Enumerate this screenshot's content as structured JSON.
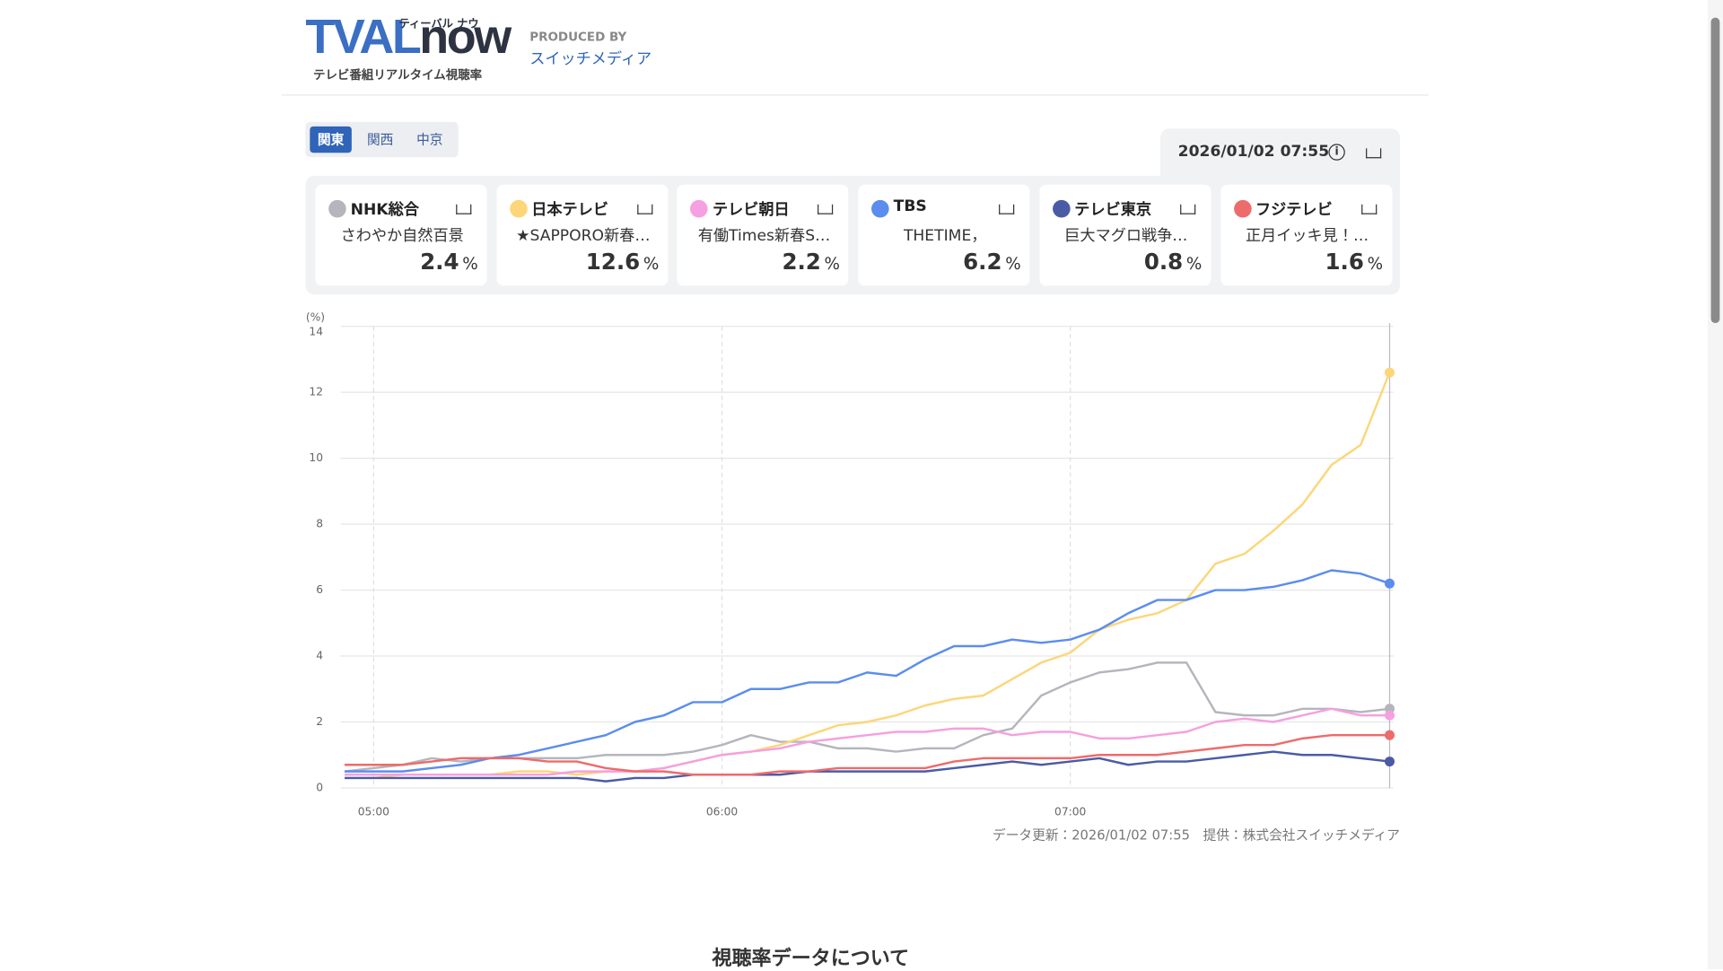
{
  "header": {
    "logo": "TVAL",
    "logo_now": "now",
    "logo_kana": "ティーバル ナウ",
    "logo_sub": "テレビ番組リアルタイム視聴率",
    "produced_by": "PRODUCED BY",
    "producer": "スイッチメディア"
  },
  "tabs": [
    "関東",
    "関西",
    "中京"
  ],
  "timestamp": "2026/01/02 07:55",
  "unit": "%",
  "channels": [
    {
      "program": "さわやか自然百景",
      "rating": 2.4
    },
    {
      "program": "★SAPPORO新春…",
      "rating": 12.6
    },
    {
      "program": "有働Times新春S…",
      "rating": 2.2
    },
    {
      "program": "THETIME，",
      "rating": 6.2
    },
    {
      "program": "巨大マグロ戦争…",
      "rating": 0.8
    },
    {
      "program": "正月イッキ見！…",
      "rating": 1.6
    }
  ],
  "chart_data": {
    "type": "line",
    "y_label": "(%)",
    "categories": [
      null,
      "05:00",
      null,
      null,
      null,
      null,
      null,
      null,
      null,
      null,
      null,
      null,
      null,
      "06:00",
      null,
      null,
      null,
      null,
      null,
      null,
      null,
      null,
      null,
      null,
      null,
      "07:00",
      null,
      null,
      null,
      null,
      null,
      null,
      null,
      null,
      null,
      null,
      null
    ],
    "ylim": [
      0,
      14
    ],
    "yticks": [
      0,
      2,
      4,
      6,
      8,
      10,
      12,
      14
    ],
    "grid": true,
    "series": [
      {
        "name": "NHK総合",
        "color": "#b4b6bc",
        "values": [
          0.5,
          0.6,
          0.7,
          0.9,
          0.8,
          0.9,
          0.9,
          0.9,
          0.9,
          1.0,
          1.0,
          1.0,
          1.1,
          1.3,
          1.6,
          1.4,
          1.4,
          1.2,
          1.2,
          1.1,
          1.2,
          1.2,
          1.6,
          1.8,
          2.8,
          3.2,
          3.5,
          3.6,
          3.8,
          3.8,
          2.3,
          2.2,
          2.2,
          2.4,
          2.4,
          2.3,
          2.4
        ]
      },
      {
        "name": "日本テレビ",
        "color": "#fcd679",
        "values": [
          0.3,
          0.3,
          0.4,
          0.4,
          0.4,
          0.4,
          0.5,
          0.5,
          0.4,
          0.5,
          0.5,
          0.6,
          0.8,
          1.0,
          1.1,
          1.3,
          1.6,
          1.9,
          2.0,
          2.2,
          2.5,
          2.7,
          2.8,
          3.3,
          3.8,
          4.1,
          4.8,
          5.1,
          5.3,
          5.7,
          6.8,
          7.1,
          7.8,
          8.6,
          9.8,
          10.4,
          12.6
        ]
      },
      {
        "name": "テレビ朝日",
        "color": "#f5a0e0",
        "values": [
          0.4,
          0.4,
          0.4,
          0.4,
          0.4,
          0.4,
          0.4,
          0.4,
          0.5,
          0.5,
          0.5,
          0.6,
          0.8,
          1.0,
          1.1,
          1.2,
          1.4,
          1.5,
          1.6,
          1.7,
          1.7,
          1.8,
          1.8,
          1.6,
          1.7,
          1.7,
          1.5,
          1.5,
          1.6,
          1.7,
          2.0,
          2.1,
          2.0,
          2.2,
          2.4,
          2.2,
          2.2
        ]
      },
      {
        "name": "TBS",
        "color": "#5b8def",
        "values": [
          0.5,
          0.5,
          0.5,
          0.6,
          0.7,
          0.9,
          1.0,
          1.2,
          1.4,
          1.6,
          2.0,
          2.2,
          2.6,
          2.6,
          3.0,
          3.0,
          3.2,
          3.2,
          3.5,
          3.4,
          3.9,
          4.3,
          4.3,
          4.5,
          4.4,
          4.5,
          4.8,
          5.3,
          5.7,
          5.7,
          6.0,
          6.0,
          6.1,
          6.3,
          6.6,
          6.5,
          6.2
        ]
      },
      {
        "name": "テレビ東京",
        "color": "#4a5ba6",
        "values": [
          0.3,
          0.3,
          0.3,
          0.3,
          0.3,
          0.3,
          0.3,
          0.3,
          0.3,
          0.2,
          0.3,
          0.3,
          0.4,
          0.4,
          0.4,
          0.4,
          0.5,
          0.5,
          0.5,
          0.5,
          0.5,
          0.6,
          0.7,
          0.8,
          0.7,
          0.8,
          0.9,
          0.7,
          0.8,
          0.8,
          0.9,
          1.0,
          1.1,
          1.0,
          1.0,
          0.9,
          0.8
        ]
      },
      {
        "name": "フジテレビ",
        "color": "#ee6b6b",
        "values": [
          0.7,
          0.7,
          0.7,
          0.8,
          0.9,
          0.9,
          0.9,
          0.8,
          0.8,
          0.6,
          0.5,
          0.5,
          0.4,
          0.4,
          0.4,
          0.5,
          0.5,
          0.6,
          0.6,
          0.6,
          0.6,
          0.8,
          0.9,
          0.9,
          0.9,
          0.9,
          1.0,
          1.0,
          1.0,
          1.1,
          1.2,
          1.3,
          1.3,
          1.5,
          1.6,
          1.6,
          1.6
        ]
      }
    ]
  },
  "footer_note": "データ更新：2026/01/02 07:55　提供：株式会社スイッチメディア",
  "section_title": "視聴率データについて"
}
